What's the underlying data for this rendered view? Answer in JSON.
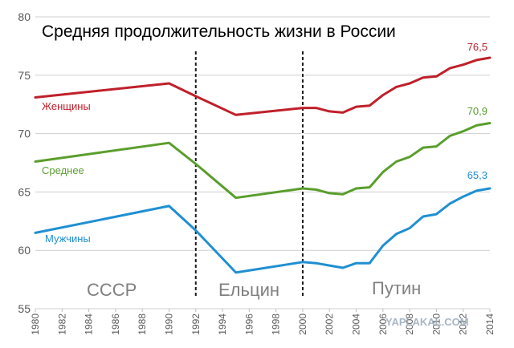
{
  "chart_data": {
    "type": "line",
    "title": "Средняя продолжительность жизни в России",
    "xlabel": "",
    "ylabel": "",
    "xlim": [
      1980,
      2014
    ],
    "ylim": [
      55,
      80
    ],
    "yticks": [
      "55",
      "60",
      "65",
      "70",
      "75",
      "80"
    ],
    "xticks": [
      "1980",
      "1982",
      "1984",
      "1986",
      "1988",
      "1990",
      "1992",
      "1994",
      "1996",
      "1998",
      "2000",
      "2002",
      "2004",
      "2006",
      "2008",
      "2010",
      "2012",
      "2014"
    ],
    "grid": "horizontal",
    "eras": [
      {
        "label": "СССР"
      },
      {
        "label": "Ельцин"
      },
      {
        "label": "Путин"
      }
    ],
    "era_dividers": [
      1992,
      2000
    ],
    "series": [
      {
        "name": "Женщины",
        "color": "#c0202a",
        "end_label": "76,5",
        "x": [
          1980,
          1990,
          1992,
          1995,
          2000,
          2001,
          2002,
          2003,
          2004,
          2005,
          2006,
          2007,
          2008,
          2009,
          2010,
          2011,
          2012,
          2013,
          2014
        ],
        "values": [
          73.1,
          74.3,
          73.2,
          71.6,
          72.2,
          72.2,
          71.9,
          71.8,
          72.3,
          72.4,
          73.3,
          74.0,
          74.3,
          74.8,
          74.9,
          75.6,
          75.9,
          76.3,
          76.5
        ]
      },
      {
        "name": "Среднее",
        "color": "#5a9e2d",
        "end_label": "70,9",
        "x": [
          1980,
          1990,
          1992,
          1995,
          2000,
          2001,
          2002,
          2003,
          2004,
          2005,
          2006,
          2007,
          2008,
          2009,
          2010,
          2011,
          2012,
          2013,
          2014
        ],
        "values": [
          67.6,
          69.2,
          67.4,
          64.5,
          65.3,
          65.2,
          64.9,
          64.8,
          65.3,
          65.4,
          66.7,
          67.6,
          68.0,
          68.8,
          68.9,
          69.8,
          70.2,
          70.7,
          70.9
        ]
      },
      {
        "name": "Мужчины",
        "color": "#1f8fd3",
        "end_label": "65,3",
        "x": [
          1980,
          1990,
          1992,
          1995,
          2000,
          2001,
          2002,
          2003,
          2004,
          2005,
          2006,
          2007,
          2008,
          2009,
          2010,
          2011,
          2012,
          2013,
          2014
        ],
        "values": [
          61.5,
          63.8,
          61.7,
          58.1,
          59.0,
          58.9,
          58.7,
          58.5,
          58.9,
          58.9,
          60.4,
          61.4,
          61.9,
          62.9,
          63.1,
          64.0,
          64.6,
          65.1,
          65.3
        ]
      }
    ],
    "watermark": "YAPLAKAL.COM"
  }
}
